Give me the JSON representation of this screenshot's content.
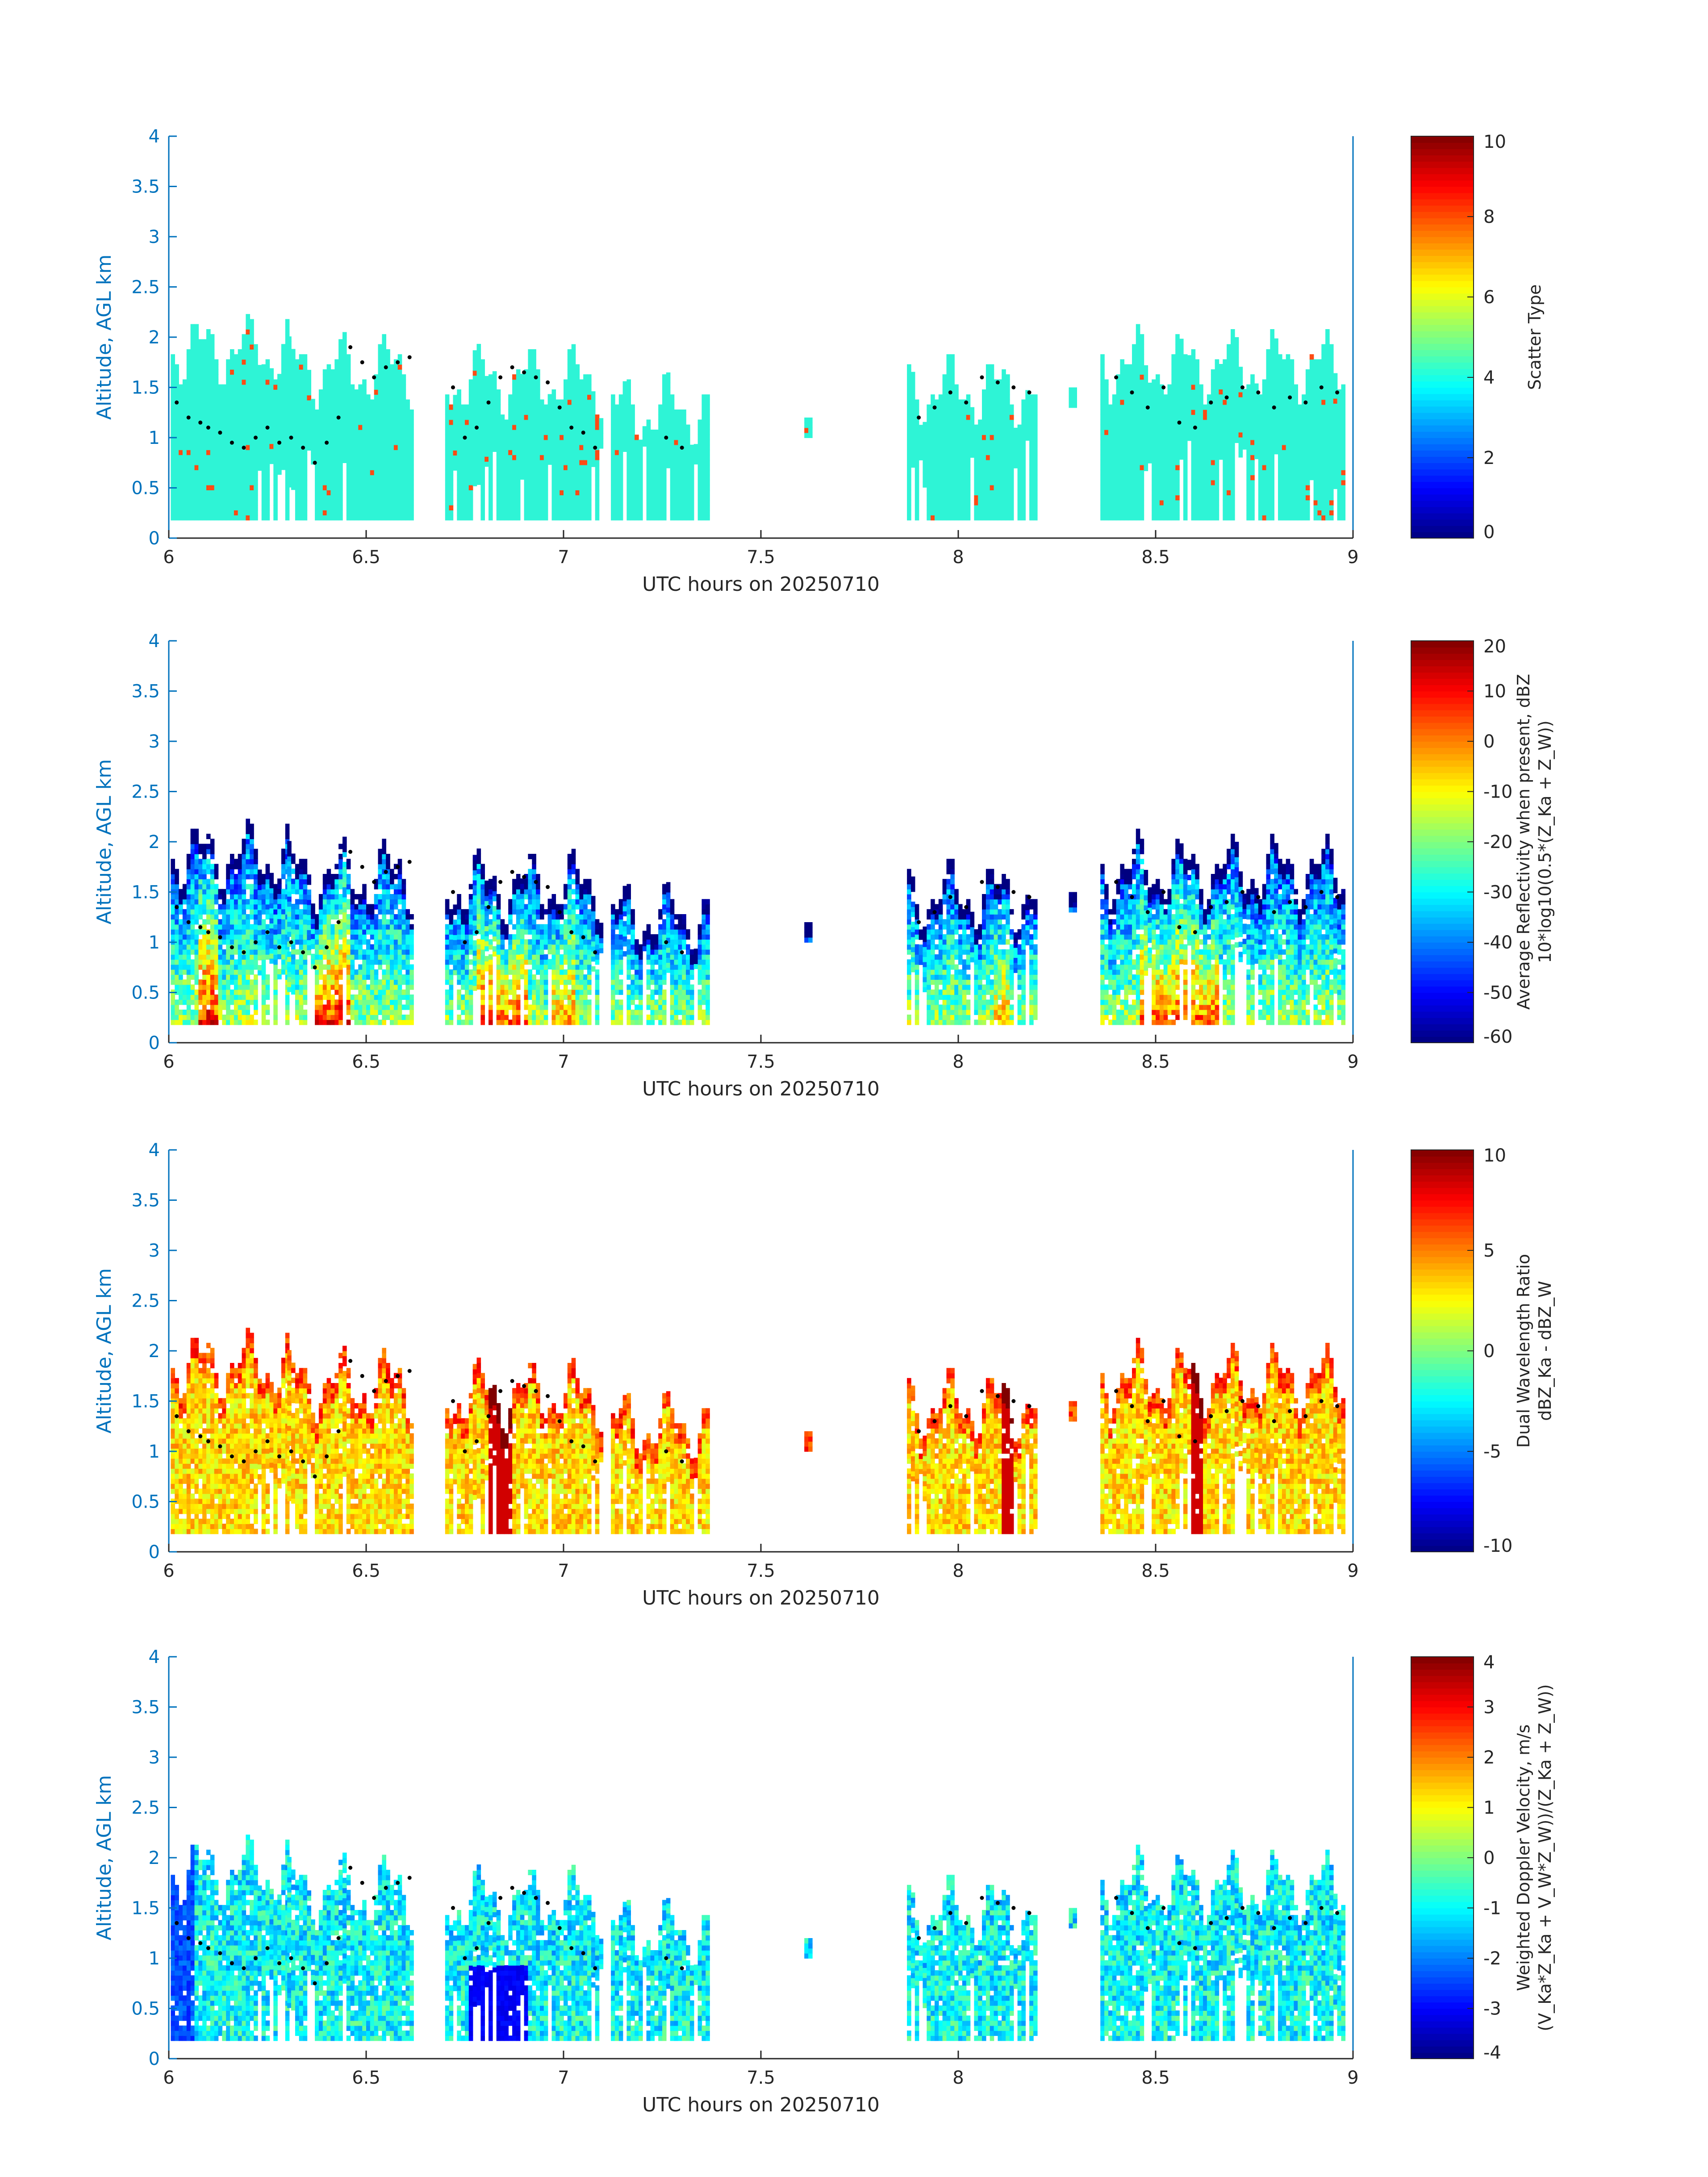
{
  "chart_data": [
    {
      "type": "heatmap",
      "panel": 1,
      "xlabel": "UTC hours on 20250710",
      "ylabel": "Altitude, AGL km",
      "xlim": [
        6,
        9
      ],
      "ylim": [
        0,
        4
      ],
      "xticks": [
        6,
        6.5,
        7,
        7.5,
        8,
        8.5,
        9
      ],
      "xtick_labels": [
        "6",
        "6.5",
        "7",
        "7.5",
        "8",
        "8.5",
        "9"
      ],
      "yticks": [
        0,
        0.5,
        1,
        1.5,
        2,
        2.5,
        3,
        3.5,
        4
      ],
      "ytick_labels": [
        "0",
        "0.5",
        "1",
        "1.5",
        "2",
        "2.5",
        "3",
        "3.5",
        "4"
      ],
      "colorbar": {
        "label_lines": [
          "Scatter Type"
        ],
        "range": [
          0,
          10
        ],
        "ticks": [
          0,
          2,
          4,
          6,
          8,
          10
        ],
        "tick_labels": [
          "0",
          "2",
          "4",
          "6",
          "8",
          "10"
        ]
      }
    },
    {
      "type": "heatmap",
      "panel": 2,
      "xlabel": "UTC hours on 20250710",
      "ylabel": "Altitude, AGL km",
      "xlim": [
        6,
        9
      ],
      "ylim": [
        0,
        4
      ],
      "xticks": [
        6,
        6.5,
        7,
        7.5,
        8,
        8.5,
        9
      ],
      "xtick_labels": [
        "6",
        "6.5",
        "7",
        "7.5",
        "8",
        "8.5",
        "9"
      ],
      "yticks": [
        0,
        0.5,
        1,
        1.5,
        2,
        2.5,
        3,
        3.5,
        4
      ],
      "ytick_labels": [
        "0",
        "0.5",
        "1",
        "1.5",
        "2",
        "2.5",
        "3",
        "3.5",
        "4"
      ],
      "colorbar": {
        "label_lines": [
          "Average Reflectivity when present, dBZ",
          "10*log10(0.5*(Z_Ka + Z_W))"
        ],
        "range": [
          -60,
          20
        ],
        "ticks": [
          -60,
          -50,
          -40,
          -30,
          -20,
          -10,
          0,
          10,
          20
        ],
        "tick_labels": [
          "-60",
          "-50",
          "-40",
          "-30",
          "-20",
          "-10",
          "0",
          "10",
          "20"
        ]
      }
    },
    {
      "type": "heatmap",
      "panel": 3,
      "xlabel": "UTC hours on 20250710",
      "ylabel": "Altitude, AGL km",
      "xlim": [
        6,
        9
      ],
      "ylim": [
        0,
        4
      ],
      "xticks": [
        6,
        6.5,
        7,
        7.5,
        8,
        8.5,
        9
      ],
      "xtick_labels": [
        "6",
        "6.5",
        "7",
        "7.5",
        "8",
        "8.5",
        "9"
      ],
      "yticks": [
        0,
        0.5,
        1,
        1.5,
        2,
        2.5,
        3,
        3.5,
        4
      ],
      "ytick_labels": [
        "0",
        "0.5",
        "1",
        "1.5",
        "2",
        "2.5",
        "3",
        "3.5",
        "4"
      ],
      "colorbar": {
        "label_lines": [
          "Dual Wavelength Ratio",
          "dBZ_Ka - dBZ_W"
        ],
        "range": [
          -10,
          10
        ],
        "ticks": [
          -10,
          -5,
          0,
          5,
          10
        ],
        "tick_labels": [
          "-10",
          "-5",
          "0",
          "5",
          "10"
        ]
      }
    },
    {
      "type": "heatmap",
      "panel": 4,
      "xlabel": "UTC hours on 20250710",
      "ylabel": "Altitude, AGL km",
      "xlim": [
        6,
        9
      ],
      "ylim": [
        0,
        4
      ],
      "xticks": [
        6,
        6.5,
        7,
        7.5,
        8,
        8.5,
        9
      ],
      "xtick_labels": [
        "6",
        "6.5",
        "7",
        "7.5",
        "8",
        "8.5",
        "9"
      ],
      "yticks": [
        0,
        0.5,
        1,
        1.5,
        2,
        2.5,
        3,
        3.5,
        4
      ],
      "ytick_labels": [
        "0",
        "0.5",
        "1",
        "1.5",
        "2",
        "2.5",
        "3",
        "3.5",
        "4"
      ],
      "colorbar": {
        "label_lines": [
          "Weighted Doppler Velocity, m/s",
          "(V_Ka*Z_Ka + V_W*Z_W))/(Z_Ka + Z_W))"
        ],
        "range": [
          -4,
          4
        ],
        "ticks": [
          -4,
          -3,
          -2,
          -1,
          0,
          1,
          2,
          3,
          4
        ],
        "tick_labels": [
          "-4",
          "-3",
          "-2",
          "-1",
          "0",
          "1",
          "2",
          "3",
          "4"
        ]
      }
    }
  ],
  "echo_segments": [
    {
      "t0": 6.005,
      "t1": 6.3,
      "base": 0.18,
      "top": 2.2
    },
    {
      "t0": 6.3,
      "t1": 6.62,
      "base": 0.18,
      "top": 2.0
    },
    {
      "t0": 6.7,
      "t1": 7.1,
      "base": 0.18,
      "top": 1.9
    },
    {
      "t0": 7.12,
      "t1": 7.37,
      "base": 0.18,
      "top": 1.6
    },
    {
      "t0": 7.61,
      "t1": 7.63,
      "base": 1.0,
      "top": 1.25
    },
    {
      "t0": 7.87,
      "t1": 8.2,
      "base": 0.18,
      "top": 1.8
    },
    {
      "t0": 8.28,
      "t1": 8.3,
      "base": 1.3,
      "top": 1.55
    },
    {
      "t0": 8.36,
      "t1": 8.98,
      "base": 0.18,
      "top": 2.05
    }
  ],
  "cloud_top_dots": {
    "t": [
      6.02,
      6.05,
      6.08,
      6.1,
      6.13,
      6.16,
      6.19,
      6.22,
      6.25,
      6.28,
      6.31,
      6.34,
      6.37,
      6.4,
      6.43,
      6.46,
      6.49,
      6.52,
      6.55,
      6.58,
      6.61,
      6.72,
      6.75,
      6.78,
      6.81,
      6.84,
      6.87,
      6.9,
      6.93,
      6.96,
      6.99,
      7.02,
      7.05,
      7.08,
      7.26,
      7.3,
      7.9,
      7.94,
      7.98,
      8.02,
      8.06,
      8.1,
      8.14,
      8.18,
      8.4,
      8.44,
      8.48,
      8.52,
      8.56,
      8.6,
      8.64,
      8.68,
      8.72,
      8.76,
      8.8,
      8.84,
      8.88,
      8.92,
      8.96
    ],
    "alt": [
      1.35,
      1.2,
      1.15,
      1.1,
      1.05,
      0.95,
      0.9,
      1.0,
      1.1,
      0.95,
      1.0,
      0.9,
      0.75,
      0.95,
      1.2,
      1.9,
      1.75,
      1.6,
      1.7,
      1.75,
      1.8,
      1.5,
      1.0,
      1.1,
      1.35,
      1.6,
      1.7,
      1.65,
      1.6,
      1.55,
      1.3,
      1.1,
      1.05,
      0.9,
      1.0,
      0.9,
      1.2,
      1.3,
      1.45,
      1.35,
      1.6,
      1.55,
      1.5,
      1.45,
      1.6,
      1.45,
      1.3,
      1.5,
      1.15,
      1.1,
      1.35,
      1.4,
      1.5,
      1.45,
      1.3,
      1.4,
      1.35,
      1.5,
      1.45
    ]
  }
}
